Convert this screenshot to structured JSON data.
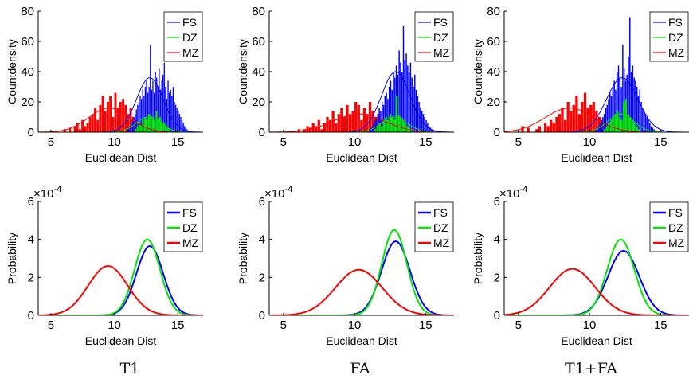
{
  "captions": [
    "T1",
    "FA",
    "T1+FA"
  ],
  "colors": {
    "FS": "#0000ff",
    "DZ": "#00e600",
    "MZ": "#ff0000"
  },
  "chart_data": [
    {
      "type": "bar",
      "id": "hist-t1",
      "xlabel": "Euclidean Dist",
      "ylabel": "Countdensity",
      "xlim": [
        4,
        17
      ],
      "ylim": [
        0,
        80
      ],
      "xticks": [
        5,
        10,
        15
      ],
      "yticks": [
        0,
        20,
        40,
        60,
        80
      ],
      "legend": [
        "FS",
        "DZ",
        "MZ"
      ],
      "legend_position": "top-right",
      "series": [
        {
          "name": "MZ",
          "bin_width": 0.2,
          "x_start": 6.0,
          "values": [
            2,
            0,
            3,
            0,
            4,
            6,
            2,
            8,
            4,
            6,
            10,
            12,
            16,
            8,
            18,
            24,
            14,
            20,
            24,
            10,
            26,
            16,
            20,
            22,
            18,
            12,
            16,
            10,
            8,
            4,
            6,
            5,
            3,
            2
          ],
          "curve": {
            "mu": 9.6,
            "sigma": 1.6,
            "peak": 16
          }
        },
        {
          "name": "FS",
          "bin_width": 0.1,
          "x_start": 11.0,
          "values": [
            2,
            3,
            4,
            6,
            8,
            10,
            12,
            15,
            18,
            20,
            24,
            22,
            28,
            24,
            30,
            34,
            26,
            30,
            58,
            28,
            34,
            26,
            40,
            36,
            30,
            42,
            28,
            34,
            38,
            46,
            30,
            22,
            34,
            26,
            28,
            24,
            30,
            20,
            18,
            16,
            14,
            12,
            10,
            8,
            6,
            4,
            3,
            2
          ],
          "curve": {
            "mu": 12.8,
            "sigma": 1.05,
            "peak": 36
          }
        },
        {
          "name": "DZ",
          "bin_width": 0.15,
          "x_start": 11.6,
          "values": [
            2,
            4,
            6,
            5,
            8,
            10,
            9,
            12,
            11,
            10,
            8,
            14,
            9,
            10,
            7,
            6,
            5,
            3,
            2
          ],
          "curve": {
            "mu": 12.7,
            "sigma": 0.95,
            "peak": 10
          }
        }
      ]
    },
    {
      "type": "bar",
      "id": "hist-fa",
      "xlabel": "Euclidean Dist",
      "ylabel": "Countdensity",
      "xlim": [
        4,
        17
      ],
      "ylim": [
        0,
        80
      ],
      "xticks": [
        5,
        10,
        15
      ],
      "yticks": [
        0,
        20,
        40,
        60,
        80
      ],
      "legend": [
        "FS",
        "DZ",
        "MZ"
      ],
      "legend_position": "top-right",
      "series": [
        {
          "name": "MZ",
          "bin_width": 0.2,
          "x_start": 6.0,
          "values": [
            2,
            0,
            2,
            4,
            3,
            6,
            4,
            8,
            2,
            6,
            10,
            8,
            14,
            6,
            12,
            16,
            10,
            18,
            12,
            14,
            20,
            18,
            8,
            16,
            12,
            20,
            14,
            10,
            12,
            8,
            6,
            4,
            3,
            2
          ],
          "curve": {
            "mu": 10.3,
            "sigma": 1.8,
            "peak": 12
          }
        },
        {
          "name": "FS",
          "bin_width": 0.1,
          "x_start": 11.0,
          "values": [
            2,
            3,
            4,
            6,
            8,
            10,
            12,
            16,
            14,
            20,
            18,
            24,
            26,
            22,
            30,
            34,
            28,
            40,
            36,
            44,
            38,
            54,
            46,
            40,
            70,
            48,
            52,
            44,
            40,
            46,
            36,
            30,
            38,
            28,
            24,
            20,
            16,
            14,
            12,
            10,
            8,
            6,
            4,
            3,
            2
          ],
          "curve": {
            "mu": 12.9,
            "sigma": 1.0,
            "peak": 40
          }
        },
        {
          "name": "DZ",
          "bin_width": 0.15,
          "x_start": 11.4,
          "values": [
            2,
            4,
            6,
            4,
            8,
            10,
            8,
            12,
            10,
            9,
            24,
            11,
            10,
            8,
            6,
            4,
            3,
            2
          ],
          "curve": {
            "mu": 12.8,
            "sigma": 0.9,
            "peak": 10
          }
        }
      ]
    },
    {
      "type": "bar",
      "id": "hist-t1fa",
      "xlabel": "Euclidean Dist",
      "ylabel": "Countdensity",
      "xlim": [
        4,
        17
      ],
      "ylim": [
        0,
        80
      ],
      "xticks": [
        5,
        10,
        15
      ],
      "yticks": [
        0,
        20,
        40,
        60,
        80
      ],
      "legend": [
        "FS",
        "DZ",
        "MZ"
      ],
      "legend_position": "top-right",
      "series": [
        {
          "name": "MZ",
          "bin_width": 0.2,
          "x_start": 5.2,
          "values": [
            4,
            0,
            3,
            0,
            0,
            2,
            4,
            0,
            6,
            4,
            8,
            6,
            10,
            12,
            16,
            8,
            20,
            14,
            18,
            24,
            12,
            20,
            26,
            16,
            18,
            20,
            14,
            10,
            8,
            6,
            4,
            2
          ],
          "curve": {
            "mu": 8.6,
            "sigma": 1.7,
            "peak": 16
          }
        },
        {
          "name": "FS",
          "bin_width": 0.1,
          "x_start": 10.4,
          "values": [
            2,
            3,
            4,
            6,
            8,
            10,
            12,
            16,
            18,
            22,
            26,
            24,
            30,
            34,
            28,
            40,
            44,
            36,
            30,
            58,
            42,
            34,
            38,
            50,
            76,
            40,
            44,
            36,
            34,
            30,
            24,
            28,
            20,
            16,
            14,
            12,
            10,
            8,
            6,
            4,
            3,
            2
          ],
          "curve": {
            "mu": 12.3,
            "sigma": 1.1,
            "peak": 36
          }
        },
        {
          "name": "DZ",
          "bin_width": 0.15,
          "x_start": 11.0,
          "values": [
            2,
            4,
            6,
            8,
            10,
            12,
            14,
            10,
            8,
            20,
            22,
            12,
            10,
            8,
            6,
            4,
            2
          ],
          "curve": {
            "mu": 12.2,
            "sigma": 0.9,
            "peak": 12
          }
        }
      ]
    },
    {
      "type": "line",
      "id": "prob-t1",
      "xlabel": "Euclidean Dist",
      "ylabel": "Probability",
      "exponent": "×10",
      "exponent_power": "-4",
      "xlim": [
        4,
        17
      ],
      "ylim": [
        0,
        6
      ],
      "xticks": [
        5,
        10,
        15
      ],
      "yticks": [
        0,
        2,
        4,
        6
      ],
      "legend": [
        "FS",
        "DZ",
        "MZ"
      ],
      "legend_position": "top-right",
      "series": [
        {
          "name": "FS",
          "mu": 12.8,
          "sigma": 1.05,
          "peak": 3.65
        },
        {
          "name": "DZ",
          "mu": 12.6,
          "sigma": 1.0,
          "peak": 4.0
        },
        {
          "name": "MZ",
          "mu": 9.5,
          "sigma": 1.55,
          "peak": 2.6
        }
      ]
    },
    {
      "type": "line",
      "id": "prob-fa",
      "xlabel": "Euclidean Dist",
      "ylabel": "Probability",
      "exponent": "×10",
      "exponent_power": "-4",
      "xlim": [
        4,
        17
      ],
      "ylim": [
        0,
        6
      ],
      "xticks": [
        5,
        10,
        15
      ],
      "yticks": [
        0,
        2,
        4,
        6
      ],
      "legend": [
        "FS",
        "DZ",
        "MZ"
      ],
      "legend_position": "top-right",
      "series": [
        {
          "name": "FS",
          "mu": 12.9,
          "sigma": 1.0,
          "peak": 3.9
        },
        {
          "name": "DZ",
          "mu": 12.8,
          "sigma": 0.88,
          "peak": 4.5
        },
        {
          "name": "MZ",
          "mu": 10.3,
          "sigma": 1.65,
          "peak": 2.4
        }
      ]
    },
    {
      "type": "line",
      "id": "prob-t1fa",
      "xlabel": "Euclidean Dist",
      "ylabel": "Probability",
      "exponent": "×10",
      "exponent_power": "-4",
      "xlim": [
        4,
        17
      ],
      "ylim": [
        0,
        6
      ],
      "xticks": [
        5,
        10,
        15
      ],
      "yticks": [
        0,
        2,
        4,
        6
      ],
      "legend": [
        "FS",
        "DZ",
        "MZ"
      ],
      "legend_position": "top-right",
      "series": [
        {
          "name": "FS",
          "mu": 12.4,
          "sigma": 1.1,
          "peak": 3.4
        },
        {
          "name": "DZ",
          "mu": 12.2,
          "sigma": 0.95,
          "peak": 4.0
        },
        {
          "name": "MZ",
          "mu": 8.8,
          "sigma": 1.6,
          "peak": 2.45
        }
      ]
    }
  ]
}
